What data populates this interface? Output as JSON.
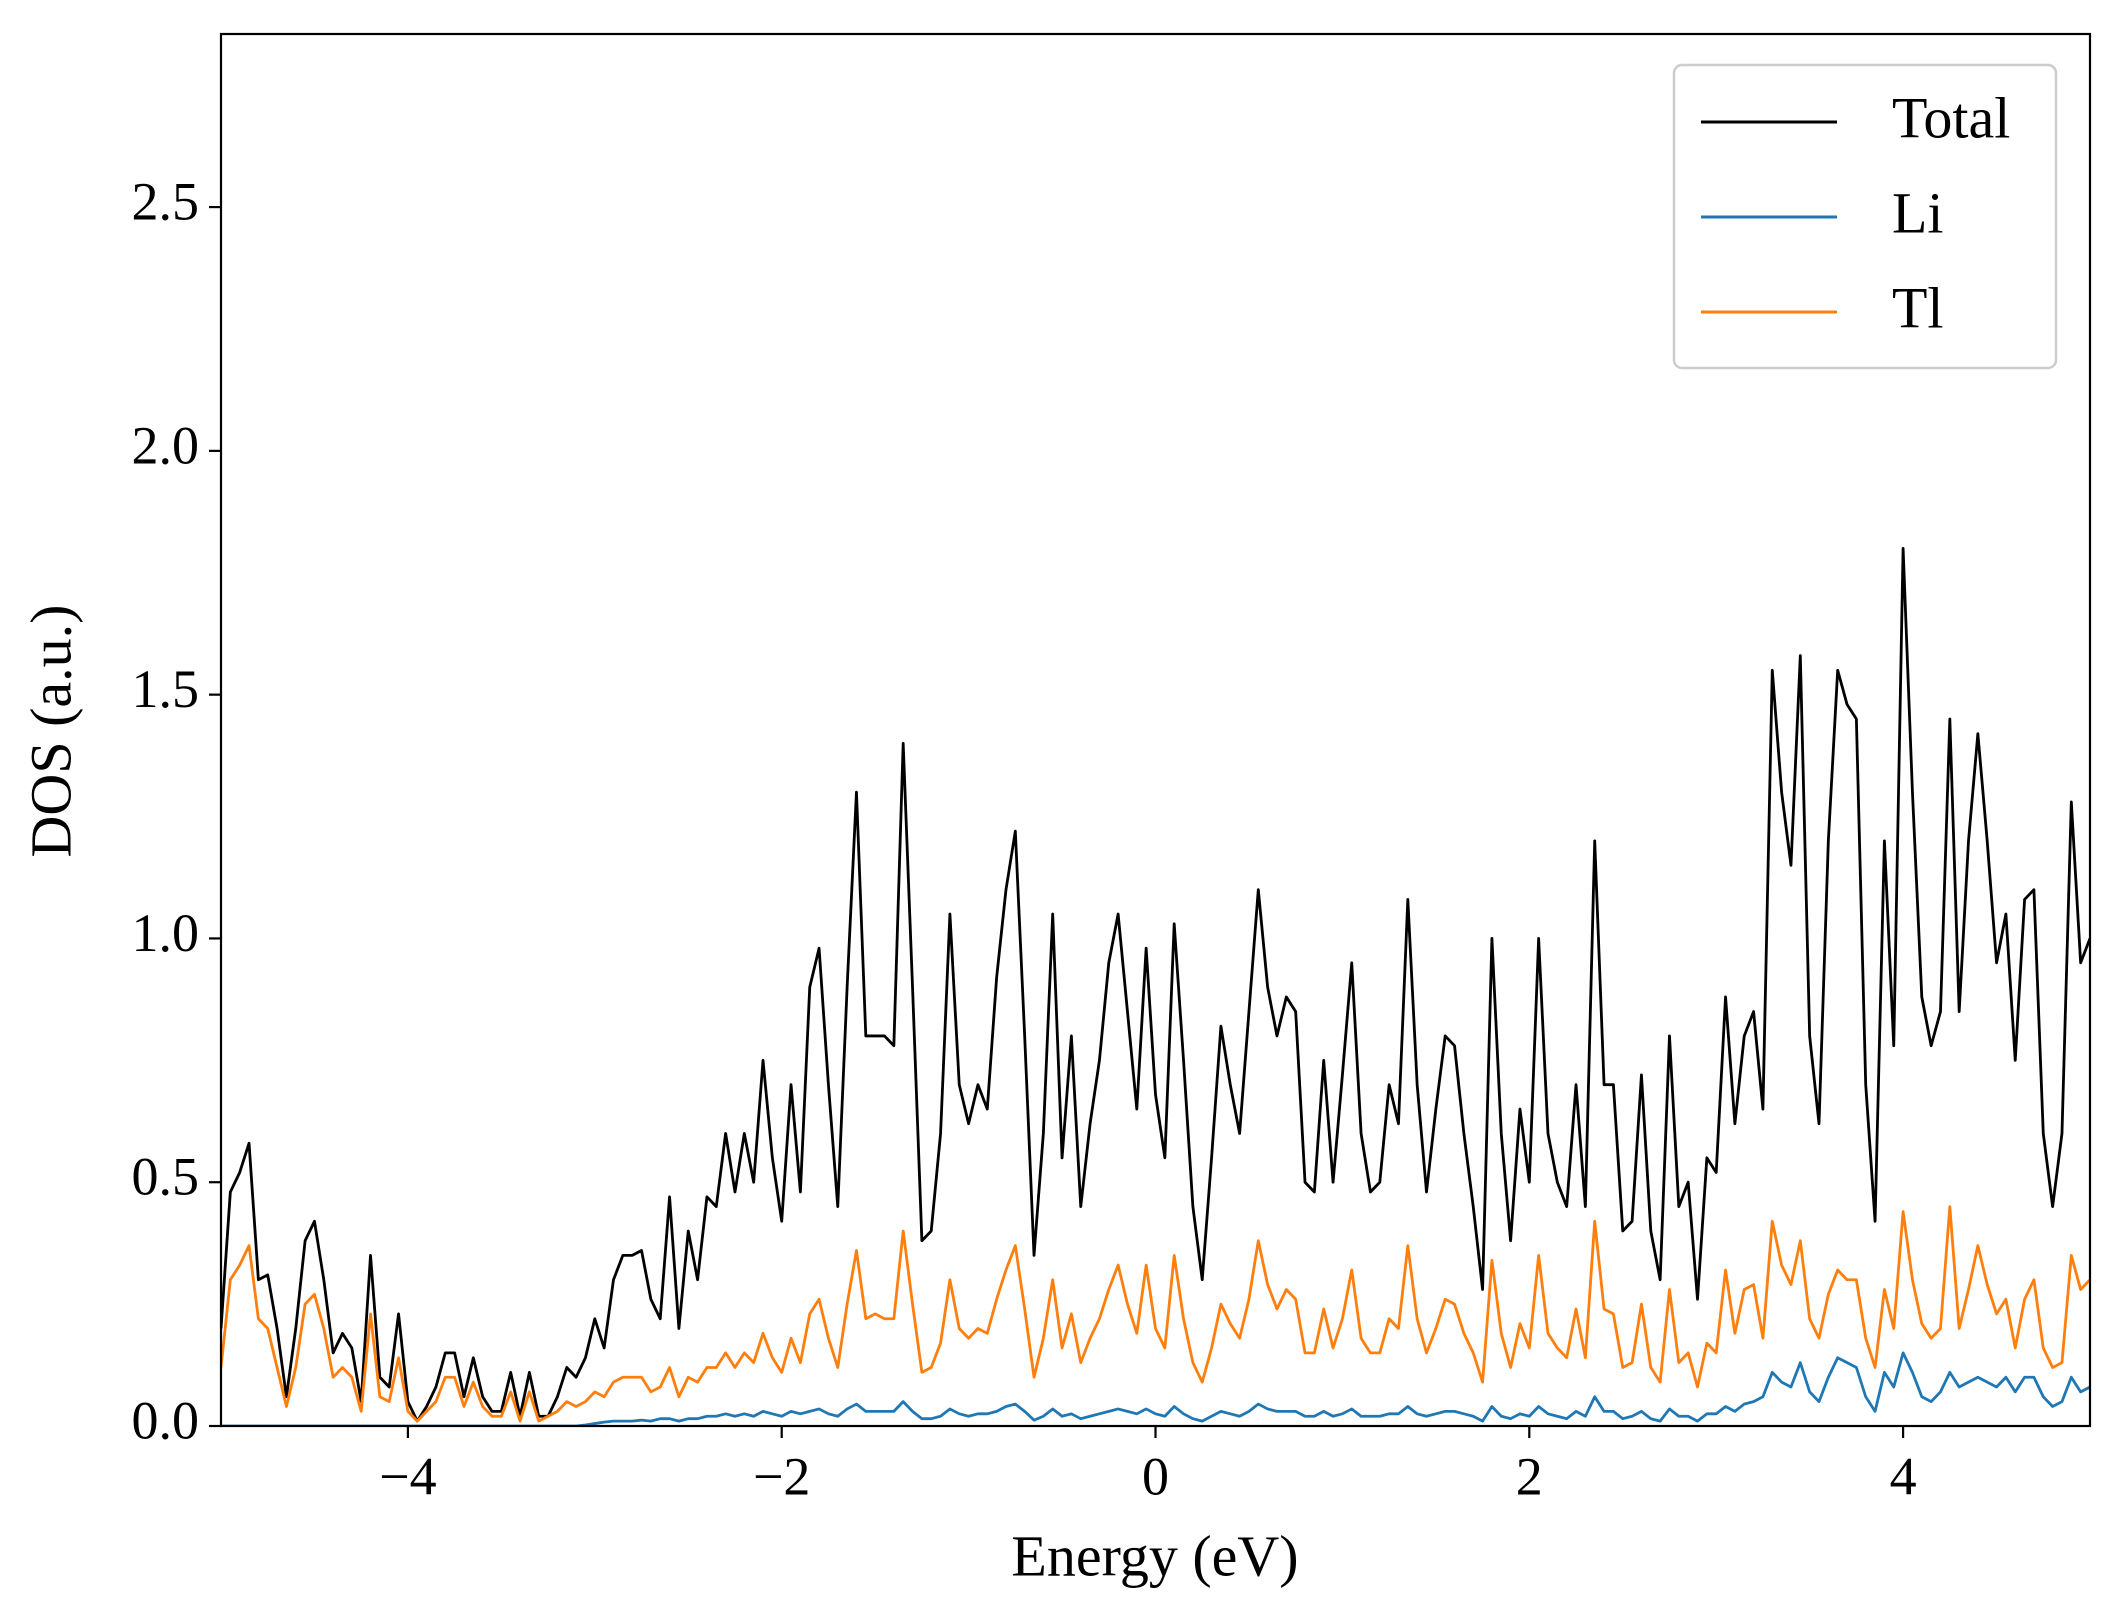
{
  "chart_data": {
    "type": "line",
    "xlabel": "Energy (eV)",
    "ylabel": "DOS (a.u.)",
    "xlim": [
      -5,
      5
    ],
    "ylim": [
      0,
      2.855
    ],
    "xticks": [
      {
        "value": -4,
        "label": "−4"
      },
      {
        "value": -2,
        "label": "−2"
      },
      0,
      2,
      4
    ],
    "yticks": [
      {
        "value": 0,
        "label": "0.0"
      },
      0.5,
      {
        "value": 1,
        "label": "1.0"
      },
      1.5,
      {
        "value": 2,
        "label": "2.0"
      },
      2.5
    ],
    "grid": false,
    "legend": "upper right",
    "x": [
      -5.0,
      -4.95,
      -4.9,
      -4.85,
      -4.8,
      -4.75,
      -4.7,
      -4.65,
      -4.6,
      -4.55,
      -4.5,
      -4.45,
      -4.4,
      -4.35,
      -4.3,
      -4.25,
      -4.2,
      -4.15,
      -4.1,
      -4.05,
      -4.0,
      -3.95,
      -3.9,
      -3.85,
      -3.8,
      -3.75,
      -3.7,
      -3.65,
      -3.6,
      -3.55,
      -3.5,
      -3.45,
      -3.4,
      -3.35,
      -3.3,
      -3.25,
      -3.2,
      -3.15,
      -3.1,
      -3.05,
      -3.0,
      -2.95,
      -2.9,
      -2.85,
      -2.8,
      -2.75,
      -2.7,
      -2.65,
      -2.6,
      -2.55,
      -2.5,
      -2.45,
      -2.4,
      -2.35,
      -2.3,
      -2.25,
      -2.2,
      -2.15,
      -2.1,
      -2.05,
      -2.0,
      -1.95,
      -1.9,
      -1.85,
      -1.8,
      -1.75,
      -1.7,
      -1.65,
      -1.6,
      -1.55,
      -1.5,
      -1.45,
      -1.4,
      -1.35,
      -1.3,
      -1.25,
      -1.2,
      -1.15,
      -1.1,
      -1.05,
      -1.0,
      -0.95,
      -0.9,
      -0.85,
      -0.8,
      -0.75,
      -0.7,
      -0.65,
      -0.6,
      -0.55,
      -0.5,
      -0.45,
      -0.4,
      -0.35,
      -0.3,
      -0.25,
      -0.2,
      -0.15,
      -0.1,
      -0.05,
      0.0,
      0.05,
      0.1,
      0.15,
      0.2,
      0.25,
      0.3,
      0.35,
      0.4,
      0.45,
      0.5,
      0.55,
      0.6,
      0.65,
      0.7,
      0.75,
      0.8,
      0.85,
      0.9,
      0.95,
      1.0,
      1.05,
      1.1,
      1.15,
      1.2,
      1.25,
      1.3,
      1.35,
      1.4,
      1.45,
      1.5,
      1.55,
      1.6,
      1.65,
      1.7,
      1.75,
      1.8,
      1.85,
      1.9,
      1.95,
      2.0,
      2.05,
      2.1,
      2.15,
      2.2,
      2.25,
      2.3,
      2.35,
      2.4,
      2.45,
      2.5,
      2.55,
      2.6,
      2.65,
      2.7,
      2.75,
      2.8,
      2.85,
      2.9,
      2.95,
      3.0,
      3.05,
      3.1,
      3.15,
      3.2,
      3.25,
      3.3,
      3.35,
      3.4,
      3.45,
      3.5,
      3.55,
      3.6,
      3.65,
      3.7,
      3.75,
      3.8,
      3.85,
      3.9,
      3.95,
      4.0,
      4.05,
      4.1,
      4.15,
      4.2,
      4.25,
      4.3,
      4.35,
      4.4,
      4.45,
      4.5,
      4.55,
      4.6,
      4.65,
      4.7,
      4.75,
      4.8,
      4.85,
      4.9,
      4.95,
      5.0
    ],
    "series": [
      {
        "name": "Total",
        "color": "#000000",
        "values": [
          0.2,
          0.48,
          0.52,
          0.58,
          0.3,
          0.31,
          0.2,
          0.06,
          0.2,
          0.38,
          0.42,
          0.3,
          0.15,
          0.19,
          0.16,
          0.05,
          0.35,
          0.1,
          0.08,
          0.23,
          0.05,
          0.01,
          0.04,
          0.08,
          0.15,
          0.15,
          0.06,
          0.14,
          0.06,
          0.03,
          0.03,
          0.11,
          0.02,
          0.11,
          0.02,
          0.02,
          0.06,
          0.12,
          0.1,
          0.14,
          0.22,
          0.16,
          0.3,
          0.35,
          0.35,
          0.36,
          0.26,
          0.22,
          0.47,
          0.2,
          0.4,
          0.3,
          0.47,
          0.45,
          0.6,
          0.48,
          0.6,
          0.5,
          0.75,
          0.55,
          0.42,
          0.7,
          0.48,
          0.9,
          0.98,
          0.7,
          0.45,
          0.9,
          1.3,
          0.8,
          0.8,
          0.8,
          0.78,
          1.4,
          0.9,
          0.38,
          0.4,
          0.6,
          1.05,
          0.7,
          0.62,
          0.7,
          0.65,
          0.92,
          1.1,
          1.22,
          0.8,
          0.35,
          0.6,
          1.05,
          0.55,
          0.8,
          0.45,
          0.62,
          0.75,
          0.95,
          1.05,
          0.85,
          0.65,
          0.98,
          0.68,
          0.55,
          1.03,
          0.75,
          0.45,
          0.3,
          0.55,
          0.82,
          0.7,
          0.6,
          0.85,
          1.1,
          0.9,
          0.8,
          0.88,
          0.85,
          0.5,
          0.48,
          0.75,
          0.5,
          0.72,
          0.95,
          0.6,
          0.48,
          0.5,
          0.7,
          0.62,
          1.08,
          0.7,
          0.48,
          0.65,
          0.8,
          0.78,
          0.6,
          0.45,
          0.28,
          1.0,
          0.6,
          0.38,
          0.65,
          0.5,
          1.0,
          0.6,
          0.5,
          0.45,
          0.7,
          0.45,
          1.2,
          0.7,
          0.7,
          0.4,
          0.42,
          0.72,
          0.4,
          0.3,
          0.8,
          0.45,
          0.5,
          0.26,
          0.55,
          0.52,
          0.88,
          0.62,
          0.8,
          0.85,
          0.65,
          1.55,
          1.3,
          1.15,
          1.58,
          0.8,
          0.62,
          1.2,
          1.55,
          1.48,
          1.45,
          0.7,
          0.42,
          1.2,
          0.78,
          1.8,
          1.3,
          0.88,
          0.78,
          0.85,
          1.45,
          0.85,
          1.2,
          1.42,
          1.2,
          0.95,
          1.05,
          0.75,
          1.08,
          1.1,
          0.6,
          0.45,
          0.6,
          1.28,
          0.95,
          1.0
        ]
      },
      {
        "name": "Li",
        "color": "#1f77b4",
        "values": [
          0,
          0,
          0,
          0,
          0,
          0,
          0,
          0,
          0,
          0,
          0,
          0,
          0,
          0,
          0,
          0,
          0,
          0,
          0,
          0,
          0,
          0,
          0,
          0,
          0,
          0,
          0,
          0,
          0,
          0,
          0,
          0,
          0,
          0,
          0,
          0,
          0,
          0,
          0,
          0.002,
          0.005,
          0.008,
          0.01,
          0.01,
          0.01,
          0.012,
          0.01,
          0.015,
          0.015,
          0.01,
          0.015,
          0.015,
          0.02,
          0.02,
          0.025,
          0.02,
          0.025,
          0.02,
          0.03,
          0.025,
          0.02,
          0.03,
          0.025,
          0.03,
          0.035,
          0.025,
          0.02,
          0.035,
          0.045,
          0.03,
          0.03,
          0.03,
          0.03,
          0.05,
          0.03,
          0.015,
          0.015,
          0.02,
          0.035,
          0.025,
          0.02,
          0.025,
          0.025,
          0.03,
          0.04,
          0.045,
          0.03,
          0.012,
          0.02,
          0.035,
          0.02,
          0.025,
          0.015,
          0.02,
          0.025,
          0.03,
          0.035,
          0.03,
          0.025,
          0.035,
          0.025,
          0.02,
          0.04,
          0.025,
          0.015,
          0.01,
          0.02,
          0.03,
          0.025,
          0.02,
          0.03,
          0.045,
          0.035,
          0.03,
          0.03,
          0.03,
          0.02,
          0.02,
          0.03,
          0.02,
          0.025,
          0.035,
          0.02,
          0.02,
          0.02,
          0.025,
          0.025,
          0.04,
          0.025,
          0.02,
          0.025,
          0.03,
          0.03,
          0.025,
          0.02,
          0.01,
          0.04,
          0.02,
          0.015,
          0.025,
          0.02,
          0.04,
          0.025,
          0.02,
          0.015,
          0.03,
          0.02,
          0.06,
          0.03,
          0.03,
          0.015,
          0.02,
          0.03,
          0.015,
          0.01,
          0.035,
          0.02,
          0.02,
          0.01,
          0.025,
          0.025,
          0.04,
          0.03,
          0.045,
          0.05,
          0.06,
          0.11,
          0.09,
          0.08,
          0.13,
          0.07,
          0.05,
          0.1,
          0.14,
          0.13,
          0.12,
          0.06,
          0.03,
          0.11,
          0.08,
          0.15,
          0.11,
          0.06,
          0.05,
          0.07,
          0.11,
          0.08,
          0.09,
          0.1,
          0.09,
          0.08,
          0.1,
          0.07,
          0.1,
          0.1,
          0.06,
          0.04,
          0.05,
          0.1,
          0.07,
          0.08
        ]
      },
      {
        "name": "Tl",
        "color": "#ff7f0e",
        "values": [
          0.12,
          0.3,
          0.33,
          0.37,
          0.22,
          0.2,
          0.12,
          0.04,
          0.12,
          0.25,
          0.27,
          0.2,
          0.1,
          0.12,
          0.1,
          0.03,
          0.23,
          0.06,
          0.05,
          0.14,
          0.03,
          0.01,
          0.03,
          0.05,
          0.1,
          0.1,
          0.04,
          0.09,
          0.04,
          0.02,
          0.02,
          0.07,
          0.01,
          0.07,
          0.01,
          0.02,
          0.03,
          0.05,
          0.04,
          0.05,
          0.07,
          0.06,
          0.09,
          0.1,
          0.1,
          0.1,
          0.07,
          0.08,
          0.12,
          0.06,
          0.1,
          0.09,
          0.12,
          0.12,
          0.15,
          0.12,
          0.15,
          0.13,
          0.19,
          0.14,
          0.11,
          0.18,
          0.13,
          0.23,
          0.26,
          0.18,
          0.12,
          0.25,
          0.36,
          0.22,
          0.23,
          0.22,
          0.22,
          0.4,
          0.25,
          0.11,
          0.12,
          0.17,
          0.3,
          0.2,
          0.18,
          0.2,
          0.19,
          0.26,
          0.32,
          0.37,
          0.24,
          0.1,
          0.18,
          0.3,
          0.16,
          0.23,
          0.13,
          0.18,
          0.22,
          0.28,
          0.33,
          0.25,
          0.19,
          0.33,
          0.2,
          0.16,
          0.35,
          0.22,
          0.13,
          0.09,
          0.16,
          0.25,
          0.21,
          0.18,
          0.26,
          0.38,
          0.29,
          0.24,
          0.28,
          0.26,
          0.15,
          0.15,
          0.24,
          0.16,
          0.22,
          0.32,
          0.18,
          0.15,
          0.15,
          0.22,
          0.2,
          0.37,
          0.22,
          0.15,
          0.2,
          0.26,
          0.25,
          0.19,
          0.15,
          0.09,
          0.34,
          0.19,
          0.12,
          0.21,
          0.16,
          0.35,
          0.19,
          0.16,
          0.14,
          0.24,
          0.14,
          0.42,
          0.24,
          0.23,
          0.12,
          0.13,
          0.25,
          0.12,
          0.09,
          0.28,
          0.13,
          0.15,
          0.08,
          0.17,
          0.15,
          0.32,
          0.19,
          0.28,
          0.29,
          0.18,
          0.42,
          0.33,
          0.29,
          0.38,
          0.22,
          0.18,
          0.27,
          0.32,
          0.3,
          0.3,
          0.18,
          0.12,
          0.28,
          0.2,
          0.44,
          0.3,
          0.21,
          0.18,
          0.2,
          0.45,
          0.2,
          0.28,
          0.37,
          0.29,
          0.23,
          0.26,
          0.16,
          0.26,
          0.3,
          0.16,
          0.12,
          0.13,
          0.35,
          0.28,
          0.3
        ]
      }
    ]
  }
}
